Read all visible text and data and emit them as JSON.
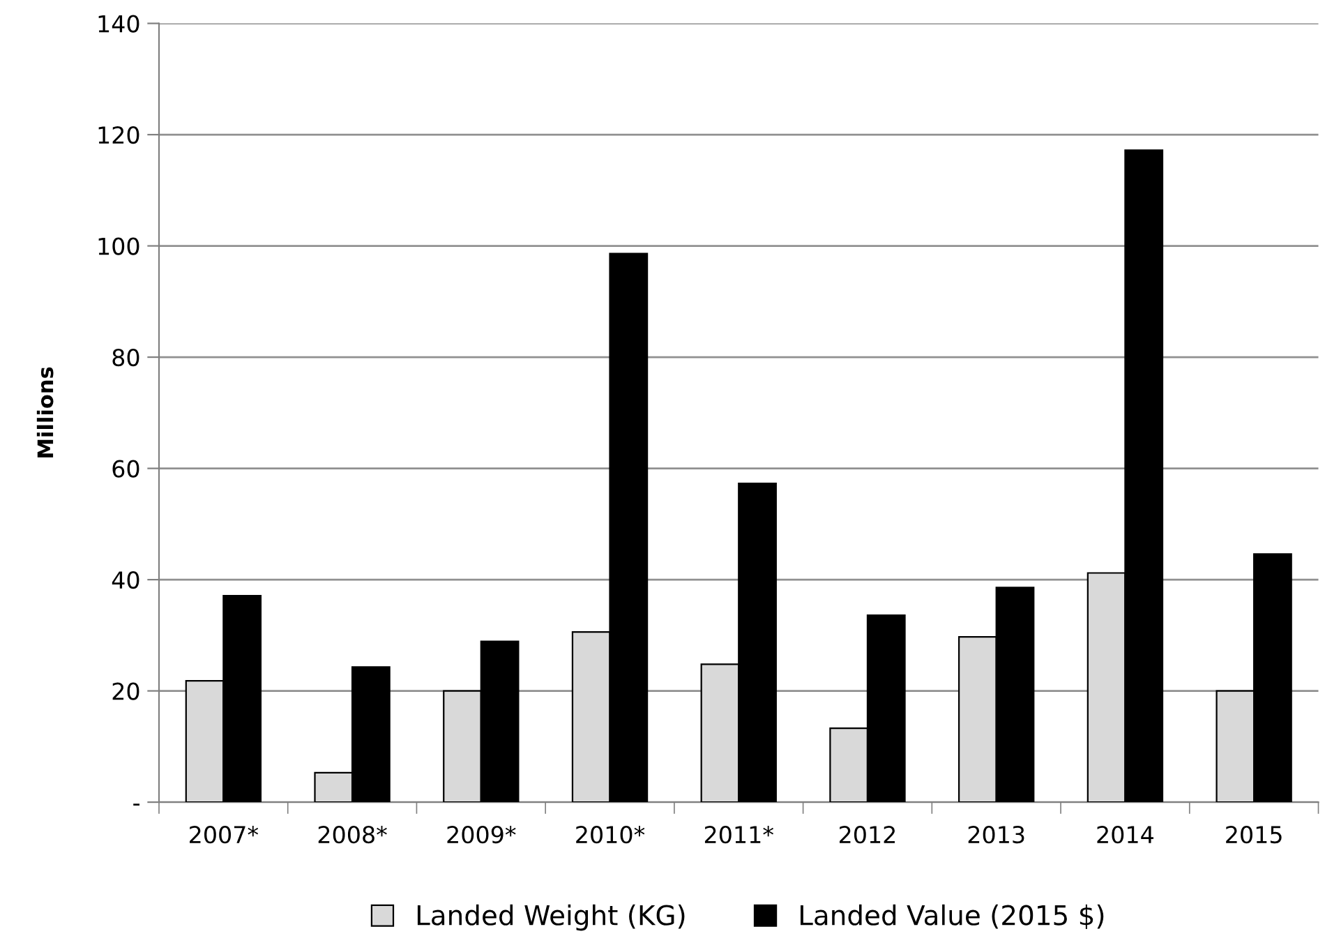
{
  "chart_data": {
    "type": "bar",
    "ylabel": "Millions",
    "categories": [
      "2007*",
      "2008*",
      "2009*",
      "2010*",
      "2011*",
      "2012",
      "2013",
      "2014",
      "2015"
    ],
    "series": [
      {
        "name": "Landed Weight (KG)",
        "color": "#d9d9d9",
        "values": [
          21.8,
          5.3,
          20,
          30.6,
          24.8,
          13.3,
          29.7,
          41.2,
          20
        ]
      },
      {
        "name": "Landed Value (2015 $)",
        "color": "#000000",
        "values": [
          37.1,
          24.3,
          28.9,
          98.6,
          57.3,
          33.6,
          38.6,
          117.2,
          44.6
        ]
      }
    ],
    "ylim": [
      0,
      140
    ],
    "yticks": [
      {
        "value": 0,
        "label": "-"
      },
      20,
      40,
      60,
      80,
      100,
      120,
      140
    ],
    "grid": "y",
    "legend": "bottom"
  }
}
